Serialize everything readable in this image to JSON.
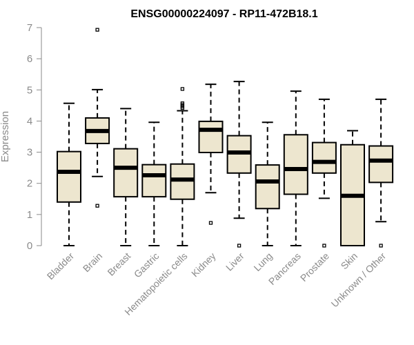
{
  "chart_data": {
    "type": "boxplot",
    "title": "ENSG00000224097 - RP11-472B18.1",
    "xlabel": "",
    "ylabel": "Expression",
    "ylim": [
      0,
      7
    ],
    "yticks": [
      0,
      1,
      2,
      3,
      4,
      5,
      6,
      7
    ],
    "grid": false,
    "colors": {
      "box_fill": "#ede6cf",
      "stroke": "#000000",
      "axis": "#8a8a8a",
      "text": "#8a8a8a"
    },
    "categories": [
      "Bladder",
      "Brain",
      "Breast",
      "Gastric",
      "Hematopoietic cells",
      "Kidney",
      "Liver",
      "Lung",
      "Pancreas",
      "Prostate",
      "Skin",
      "Unknown / Other"
    ],
    "boxes": [
      {
        "name": "Bladder",
        "whisker_low": 0.0,
        "q1": 1.4,
        "median": 2.37,
        "q3": 3.02,
        "whisker_high": 4.57,
        "outliers": []
      },
      {
        "name": "Brain",
        "whisker_low": 2.22,
        "q1": 3.28,
        "median": 3.68,
        "q3": 4.1,
        "whisker_high": 5.01,
        "outliers": [
          6.93,
          1.28
        ]
      },
      {
        "name": "Breast",
        "whisker_low": 0.0,
        "q1": 1.57,
        "median": 2.5,
        "q3": 3.11,
        "whisker_high": 4.4,
        "outliers": []
      },
      {
        "name": "Gastric",
        "whisker_low": 0.0,
        "q1": 1.57,
        "median": 2.26,
        "q3": 2.6,
        "whisker_high": 3.96,
        "outliers": []
      },
      {
        "name": "Hematopoietic cells",
        "whisker_low": 0.0,
        "q1": 1.49,
        "median": 2.12,
        "q3": 2.62,
        "whisker_high": 4.33,
        "outliers": [
          4.42,
          4.47,
          4.52,
          4.57,
          5.03
        ]
      },
      {
        "name": "Kidney",
        "whisker_low": 1.7,
        "q1": 2.99,
        "median": 3.72,
        "q3": 3.99,
        "whisker_high": 5.18,
        "outliers": [
          0.73
        ]
      },
      {
        "name": "Liver",
        "whisker_low": 0.88,
        "q1": 2.33,
        "median": 2.99,
        "q3": 3.53,
        "whisker_high": 5.27,
        "outliers": [
          0.0
        ]
      },
      {
        "name": "Lung",
        "whisker_low": 0.0,
        "q1": 1.19,
        "median": 2.06,
        "q3": 2.59,
        "whisker_high": 3.96,
        "outliers": []
      },
      {
        "name": "Pancreas",
        "whisker_low": 0.0,
        "q1": 1.65,
        "median": 2.46,
        "q3": 3.56,
        "whisker_high": 4.96,
        "outliers": []
      },
      {
        "name": "Prostate",
        "whisker_low": 1.52,
        "q1": 2.33,
        "median": 2.69,
        "q3": 3.31,
        "whisker_high": 4.7,
        "outliers": [
          0.0
        ]
      },
      {
        "name": "Skin",
        "whisker_low": 0.0,
        "q1": 0.0,
        "median": 1.6,
        "q3": 3.24,
        "whisker_high": 3.69,
        "outliers": []
      },
      {
        "name": "Unknown / Other",
        "whisker_low": 0.77,
        "q1": 2.03,
        "median": 2.73,
        "q3": 3.2,
        "whisker_high": 4.7,
        "outliers": [
          0.0
        ]
      }
    ]
  }
}
